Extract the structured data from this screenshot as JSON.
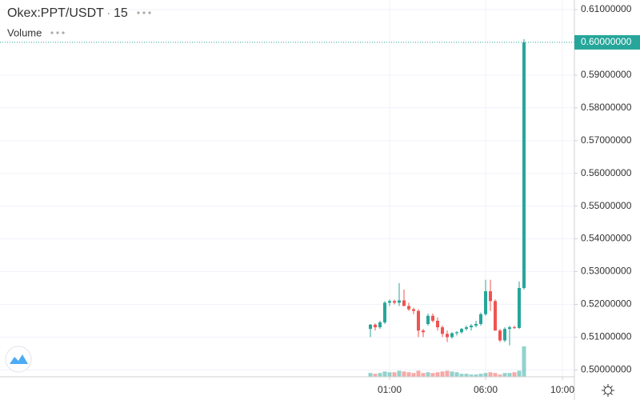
{
  "header": {
    "symbol": "Okex:PPT/USDT",
    "interval": "15",
    "study": "Volume"
  },
  "chart_data": {
    "type": "candlestick",
    "up_color": "#26a69a",
    "down_color": "#ef5350",
    "xlim": [
      -19.29,
      10.625
    ],
    "xticks": [
      {
        "value": 1,
        "label": "01:00"
      },
      {
        "value": 6,
        "label": "06:00"
      },
      {
        "value": 10,
        "label": "10:00"
      }
    ],
    "ylim": [
      0.49788,
      0.61293
    ],
    "yticks": [
      {
        "value": 0.5,
        "label": "0.50000000"
      },
      {
        "value": 0.51,
        "label": "0.51000000"
      },
      {
        "value": 0.52,
        "label": "0.52000000"
      },
      {
        "value": 0.53,
        "label": "0.53000000"
      },
      {
        "value": 0.54,
        "label": "0.54000000"
      },
      {
        "value": 0.55,
        "label": "0.55000000"
      },
      {
        "value": 0.56,
        "label": "0.56000000"
      },
      {
        "value": 0.57,
        "label": "0.57000000"
      },
      {
        "value": 0.58,
        "label": "0.58000000"
      },
      {
        "value": 0.59,
        "label": "0.59000000"
      },
      {
        "value": 0.61,
        "label": "0.61000000"
      }
    ],
    "last_price": {
      "value": 0.6,
      "label": "0.60000000"
    },
    "grid": true,
    "x": [
      0,
      0.25,
      0.5,
      0.75,
      1,
      1.25,
      1.5,
      1.75,
      2,
      2.25,
      2.5,
      2.75,
      3,
      3.25,
      3.5,
      3.75,
      4,
      4.25,
      4.5,
      4.75,
      5,
      5.25,
      5.5,
      5.75,
      6,
      6.25,
      6.5,
      6.75,
      7,
      7.25,
      7.5,
      7.75,
      8
    ],
    "open": [
      0.5125,
      0.5138,
      0.513,
      0.5145,
      0.5205,
      0.521,
      0.5205,
      0.5212,
      0.5195,
      0.5185,
      0.518,
      0.512,
      0.514,
      0.5165,
      0.515,
      0.513,
      0.511,
      0.51,
      0.5112,
      0.5115,
      0.5125,
      0.513,
      0.5135,
      0.514,
      0.517,
      0.524,
      0.521,
      0.512,
      0.509,
      0.5125,
      0.513,
      0.5128,
      0.525
    ],
    "high": [
      0.514,
      0.5142,
      0.515,
      0.521,
      0.5215,
      0.5215,
      0.5265,
      0.5245,
      0.5205,
      0.519,
      0.5185,
      0.5125,
      0.5172,
      0.5172,
      0.516,
      0.5135,
      0.512,
      0.5115,
      0.5118,
      0.5128,
      0.5135,
      0.514,
      0.515,
      0.5175,
      0.5275,
      0.5275,
      0.5215,
      0.5125,
      0.513,
      0.5135,
      0.5135,
      0.527,
      0.601
    ],
    "low": [
      0.51,
      0.512,
      0.5125,
      0.514,
      0.5195,
      0.52,
      0.5195,
      0.5195,
      0.518,
      0.517,
      0.51,
      0.51,
      0.5135,
      0.5145,
      0.512,
      0.51,
      0.5085,
      0.5095,
      0.5105,
      0.511,
      0.512,
      0.512,
      0.513,
      0.5135,
      0.5165,
      0.518,
      0.512,
      0.5085,
      0.5085,
      0.5075,
      0.5125,
      0.5125,
      0.5245
    ],
    "close": [
      0.5138,
      0.513,
      0.5145,
      0.5205,
      0.521,
      0.5205,
      0.5212,
      0.5195,
      0.5185,
      0.518,
      0.512,
      0.5115,
      0.5165,
      0.515,
      0.513,
      0.511,
      0.51,
      0.5112,
      0.5115,
      0.5125,
      0.513,
      0.5135,
      0.514,
      0.517,
      0.524,
      0.521,
      0.512,
      0.509,
      0.5125,
      0.513,
      0.5128,
      0.525,
      0.6
    ],
    "volume": [
      5,
      4,
      5,
      7,
      6,
      6,
      8,
      7,
      6,
      5,
      8,
      5,
      6,
      5,
      6,
      7,
      8,
      7,
      6,
      4,
      4,
      3,
      3,
      4,
      5,
      6,
      5,
      3,
      5,
      5,
      6,
      8,
      40
    ]
  }
}
